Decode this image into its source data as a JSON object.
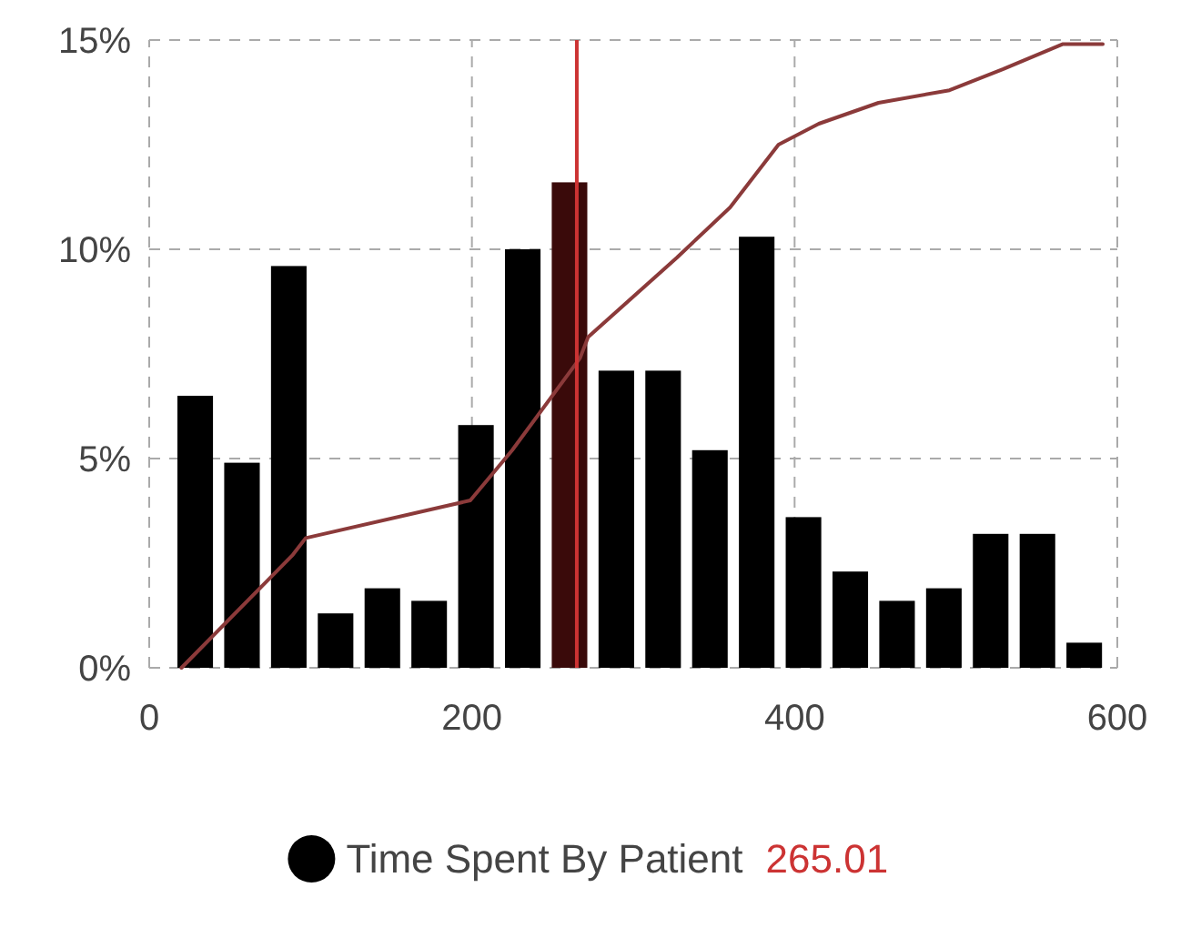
{
  "chart_data": {
    "type": "histogram",
    "bins": [
      14,
      43,
      72,
      101,
      130,
      159,
      188,
      217,
      246,
      275,
      304,
      333,
      362,
      391,
      420,
      449,
      478,
      507,
      536,
      565,
      594
    ],
    "series": [
      {
        "name": "Time Spent By Patient",
        "color": "#000000",
        "colors": [
          "#000000",
          "#000000",
          "#000000",
          "#000000",
          "#000000",
          "#000000",
          "#000000",
          "#000000",
          "#3a0a0a",
          "#000000",
          "#000000",
          "#000000",
          "#000000",
          "#000000",
          "#000000",
          "#000000",
          "#000000",
          "#000000",
          "#000000",
          "#000000"
        ],
        "values": [
          6.5,
          4.9,
          9.6,
          1.3,
          1.9,
          1.6,
          5.8,
          10.0,
          11.6,
          7.1,
          7.1,
          5.2,
          10.3,
          3.6,
          2.3,
          1.6,
          1.9,
          3.2,
          3.2,
          0.6
        ]
      },
      {
        "type": "line",
        "color": "#8b3a3a",
        "x": [
          20,
          89,
          97,
          199,
          225,
          267,
          272,
          327,
          360,
          390,
          415,
          452,
          496,
          529,
          566,
          591
        ],
        "values": [
          0,
          2.7,
          3.1,
          4.0,
          5.2,
          7.4,
          7.9,
          9.8,
          11.0,
          12.5,
          13.0,
          13.5,
          13.8,
          14.3,
          14.9,
          14.9
        ]
      }
    ],
    "ref_lines": [
      {
        "axis": "x",
        "value": 265.01,
        "label": "265.01",
        "color": "#cc3333"
      }
    ],
    "xlim": [
      0,
      600
    ],
    "xticks": [
      0,
      200,
      400,
      600
    ],
    "ylim": [
      0,
      15
    ],
    "yticks": [
      {
        "value": 0,
        "label": "0%"
      },
      {
        "value": 5,
        "label": "5%"
      },
      {
        "value": 10,
        "label": "10%"
      },
      {
        "value": 15,
        "label": "15%"
      }
    ],
    "grid": true,
    "legend": "bottom",
    "line_style": "solid"
  }
}
